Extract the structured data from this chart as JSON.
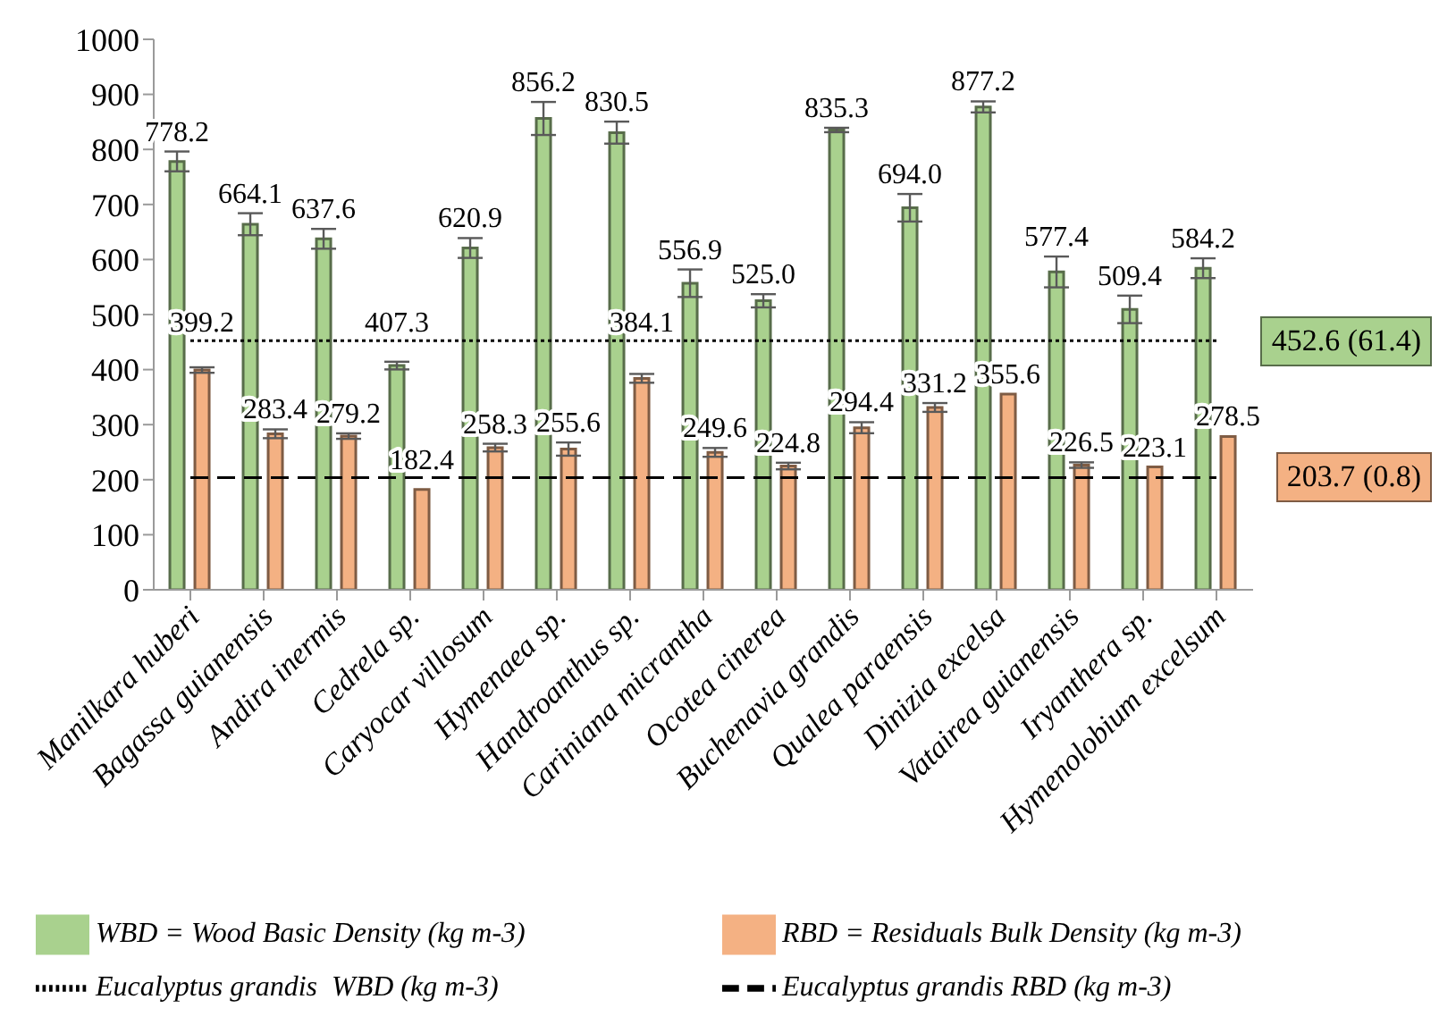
{
  "chart_data": {
    "type": "bar",
    "categories": [
      "Manilkara huberi",
      "Bagassa guianensis",
      "Andira inermis",
      "Cedrela sp.",
      "Caryocar villosum",
      "Hymenaea sp.",
      "Handroanthus sp.",
      "Cariniana micrantha",
      "Ocotea cinerea",
      "Buchenavia grandis",
      "Qualea paraensis",
      "Dinizia excelsa",
      "Vatairea guianensis",
      "Iryanthera sp.",
      "Hymenolobium excelsum"
    ],
    "series": [
      {
        "name": "WBD = Wood Basic Density (kg m-3)",
        "color": "#a9d18e",
        "values": [
          778.2,
          664.1,
          637.6,
          407.3,
          620.9,
          856.2,
          830.5,
          556.9,
          525.0,
          835.3,
          694.0,
          877.2,
          577.4,
          509.4,
          584.2
        ],
        "errors": [
          18,
          20,
          18,
          7,
          18,
          30,
          20,
          25,
          12,
          4,
          25,
          10,
          28,
          25,
          18
        ],
        "value_labels": [
          "778.2",
          "664.1",
          "637.6",
          "407.3",
          "620.9",
          "856.2",
          "830.5",
          "556.9",
          "525.0",
          "835.3",
          "694.0",
          "877.2",
          "577.4",
          "509.4",
          "584.2"
        ]
      },
      {
        "name": "RBD = Residuals Bulk Density (kg m-3)",
        "color": "#f4b183",
        "values": [
          399.2,
          283.4,
          279.2,
          182.4,
          258.3,
          255.6,
          384.1,
          249.6,
          224.8,
          294.4,
          331.2,
          355.6,
          226.5,
          223.1,
          278.5
        ],
        "errors": [
          5,
          8,
          5,
          null,
          7,
          12,
          8,
          8,
          6,
          10,
          8,
          null,
          5,
          null,
          null
        ],
        "value_labels": [
          "399.2",
          "283.4",
          "279.2",
          "182.4",
          "258.3",
          "255.6",
          "384.1",
          "249.6",
          "224.8",
          "294.4",
          "331.2",
          "355.6",
          "226.5",
          "223.1",
          "278.5"
        ]
      },
      {
        "name": "Eucalyptus grandis  WBD (kg m-3)",
        "type": "line",
        "color": "#000000",
        "line_style": "dotted",
        "values": [
          452.6,
          452.6,
          452.6,
          452.6,
          452.6,
          452.6,
          452.6,
          452.6,
          452.6,
          452.6,
          452.6,
          452.6,
          452.6,
          452.6,
          452.6
        ]
      },
      {
        "name": "Eucalyptus grandis RBD (kg m-3)",
        "type": "line",
        "color": "#000000",
        "line_style": "dashed",
        "values": [
          203.7,
          203.7,
          203.7,
          203.7,
          203.7,
          203.7,
          203.7,
          203.7,
          203.7,
          203.7,
          203.7,
          203.7,
          203.7,
          203.7,
          203.7
        ]
      }
    ],
    "annotations": [
      "452.6 (61.4)",
      "203.7 (0.8)"
    ],
    "ylim": [
      0,
      1000
    ],
    "yticks": [
      0,
      100,
      200,
      300,
      400,
      500,
      600,
      700,
      800,
      900,
      1000
    ],
    "grid": false,
    "legend": "bottom"
  }
}
